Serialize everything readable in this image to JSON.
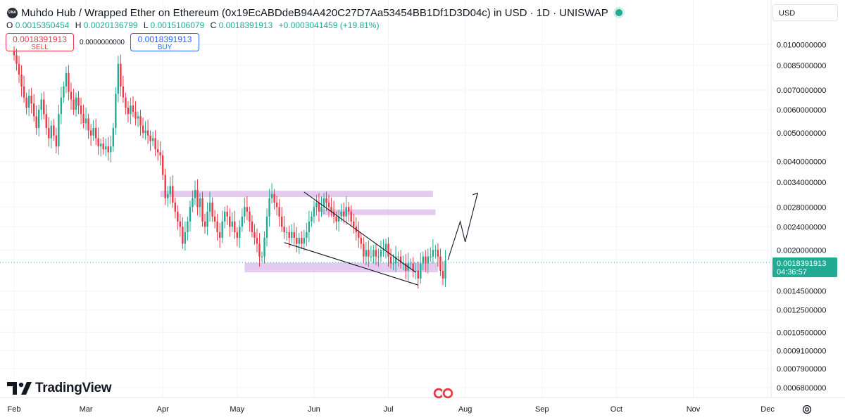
{
  "header": {
    "logo_text": "DNA",
    "title": "Muhdo Hub / Wrapped Ether on Ethereum (0x19EcABDdeB94A420C27D7Aa53454BB1Df1D3D04c) in USD · 1D · UNISWAP",
    "status_color": "#22ab94"
  },
  "ohlc": {
    "o_label": "O",
    "o_value": "0.0015350454",
    "h_label": "H",
    "h_value": "0.0020136799",
    "l_label": "L",
    "l_value": "0.0015106079",
    "c_label": "C",
    "c_value": "0.0018391913",
    "change": "+0.0003041459 (+19.81%)"
  },
  "trade": {
    "sell_price": "0.0018391913",
    "sell_label": "SELL",
    "buy_price": "0.0018391913",
    "buy_label": "BUY",
    "spread": "0.0000000000"
  },
  "currency_selector": "USD",
  "branding": "TradingView",
  "colors": {
    "up": "#22ab94",
    "down": "#f23645",
    "zone": "#d9b8e8",
    "accent": "#2962ff"
  },
  "chart_data": {
    "type": "candlestick",
    "scale": "log",
    "ylim": [
      0.00063,
      0.011
    ],
    "y_ticks": [
      "0.0100000000",
      "0.0085000000",
      "0.0070000000",
      "0.0060000000",
      "0.0050000000",
      "0.0040000000",
      "0.0034000000",
      "0.0028000000",
      "0.0024000000",
      "0.0020000000",
      "0.0014500000",
      "0.0012500000",
      "0.0010500000",
      "0.0009100000",
      "0.0007900000",
      "0.0006800000"
    ],
    "x_ticks": [
      "Feb",
      "Mar",
      "Apr",
      "May",
      "Jun",
      "Jul",
      "Aug",
      "Sep",
      "Oct",
      "Nov",
      "Dec"
    ],
    "last_price_label": "0.0018391913",
    "countdown": "04:36:57",
    "last_price": 0.0018391913,
    "daily_closes": [
      0.0092,
      0.0086,
      0.0079,
      0.0072,
      0.0066,
      0.0061,
      0.0067,
      0.0063,
      0.0057,
      0.0052,
      0.006,
      0.0065,
      0.0058,
      0.0052,
      0.0048,
      0.0053,
      0.0049,
      0.0045,
      0.0058,
      0.0066,
      0.0072,
      0.008,
      0.0069,
      0.0065,
      0.006,
      0.0066,
      0.0062,
      0.0058,
      0.0054,
      0.0056,
      0.0051,
      0.0049,
      0.0052,
      0.0048,
      0.0045,
      0.0046,
      0.0044,
      0.0045,
      0.0043,
      0.0045,
      0.0052,
      0.0068,
      0.0086,
      0.0072,
      0.0066,
      0.0061,
      0.0058,
      0.0062,
      0.0059,
      0.0056,
      0.0057,
      0.0053,
      0.005,
      0.0051,
      0.0049,
      0.0047,
      0.0048,
      0.0044,
      0.0043,
      0.0042,
      0.0036,
      0.003,
      0.0031,
      0.0033,
      0.0029,
      0.0027,
      0.0025,
      0.0024,
      0.0021,
      0.0023,
      0.0025,
      0.0028,
      0.003,
      0.0032,
      0.0028,
      0.003,
      0.0025,
      0.0024,
      0.0027,
      0.0029,
      0.0026,
      0.0025,
      0.0023,
      0.0022,
      0.0025,
      0.0027,
      0.0026,
      0.0024,
      0.0025,
      0.0023,
      0.0022,
      0.0024,
      0.0026,
      0.0028,
      0.0027,
      0.0025,
      0.0023,
      0.0022,
      0.0021,
      0.0019,
      0.0019,
      0.0022,
      0.0026,
      0.003,
      0.0031,
      0.0029,
      0.0028,
      0.0026,
      0.0024,
      0.0023,
      0.0023,
      0.0022,
      0.0023,
      0.0022,
      0.0021,
      0.0022,
      0.0021,
      0.0022,
      0.0023,
      0.0025,
      0.0026,
      0.0028,
      0.0029,
      0.0027,
      0.0028,
      0.003,
      0.0029,
      0.0028,
      0.0027,
      0.0026,
      0.0025,
      0.0026,
      0.0027,
      0.0026,
      0.0028,
      0.0027,
      0.0025,
      0.0024,
      0.0023,
      0.0022,
      0.0021,
      0.0019,
      0.002,
      0.0019,
      0.0019,
      0.002,
      0.0019,
      0.0019,
      0.002,
      0.002,
      0.0021,
      0.0019,
      0.0018,
      0.0018,
      0.0019,
      0.0019,
      0.0018,
      0.0018,
      0.0017,
      0.0018,
      0.0018,
      0.0017,
      0.0017,
      0.0016,
      0.0018,
      0.0019,
      0.0018,
      0.0019,
      0.0019,
      0.002,
      0.002,
      0.0019,
      0.0017,
      0.0016,
      0.0018391913
    ],
    "annotations": [
      {
        "kind": "zone",
        "from_date": "2024-03-31",
        "to_date": "2024-07-19",
        "low": 0.00303,
        "high": 0.00318
      },
      {
        "kind": "zone",
        "from_date": "2024-06-04",
        "to_date": "2024-07-20",
        "low": 0.00263,
        "high": 0.00275
      },
      {
        "kind": "zone",
        "from_date": "2024-05-04",
        "to_date": "2024-07-21",
        "low": 0.00168,
        "high": 0.00181
      },
      {
        "kind": "line",
        "from_date": "2024-05-28",
        "to_date": "2024-07-12",
        "from_price": 0.00315,
        "to_price": 0.00168
      },
      {
        "kind": "line",
        "from_date": "2024-05-20",
        "to_date": "2024-07-13",
        "from_price": 0.00212,
        "to_price": 0.00152
      }
    ],
    "projection_path": [
      {
        "date": "2024-07-25",
        "price": 0.00185
      },
      {
        "date": "2024-07-30",
        "price": 0.0025
      },
      {
        "date": "2024-08-01",
        "price": 0.00213
      },
      {
        "date": "2024-08-06",
        "price": 0.00312
      }
    ]
  }
}
